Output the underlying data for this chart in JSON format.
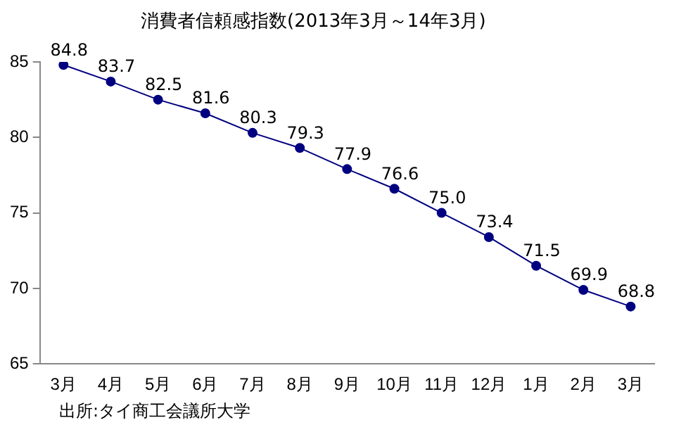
{
  "chart_data": {
    "type": "line",
    "title": "消費者信頼感指数(2013年3月～14年3月)",
    "categories": [
      "3月",
      "4月",
      "5月",
      "6月",
      "7月",
      "8月",
      "9月",
      "10月",
      "11月",
      "12月",
      "1月",
      "2月",
      "3月"
    ],
    "series": [
      {
        "color": "#000080",
        "values": [
          84.8,
          83.7,
          82.5,
          81.6,
          80.3,
          79.3,
          77.9,
          76.6,
          75.0,
          73.4,
          71.5,
          69.9,
          68.8
        ],
        "value_labels": [
          "84.8",
          "83.7",
          "82.5",
          "81.6",
          "80.3",
          "79.3",
          "77.9",
          "76.6",
          "75.0",
          "73.4",
          "71.5",
          "69.9",
          "68.8"
        ]
      }
    ],
    "ylim": [
      65,
      85
    ],
    "yticks": [
      65,
      70,
      75,
      80,
      85
    ],
    "grid": false,
    "legend": false,
    "marker": "circle",
    "line_style": "solid",
    "annotations": [
      "出所:タイ商工会議所大学"
    ]
  }
}
